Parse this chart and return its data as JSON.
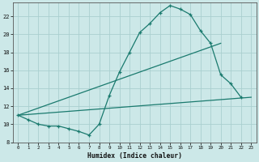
{
  "title": "",
  "xlabel": "Humidex (Indice chaleur)",
  "line_color": "#1a7a6e",
  "bg_color": "#cce8e8",
  "grid_color": "#aacfcf",
  "xlim": [
    -0.5,
    23.5
  ],
  "ylim": [
    8,
    23.5
  ],
  "yticks": [
    8,
    10,
    12,
    14,
    16,
    18,
    20,
    22
  ],
  "xticks": [
    0,
    1,
    2,
    3,
    4,
    5,
    6,
    7,
    8,
    9,
    10,
    11,
    12,
    13,
    14,
    15,
    16,
    17,
    18,
    19,
    20,
    21,
    22,
    23
  ],
  "series0_x": [
    0,
    1,
    2,
    3,
    4,
    5,
    6,
    7,
    8,
    9,
    10,
    11,
    12,
    13,
    14,
    15,
    16,
    17,
    18,
    19,
    20,
    21,
    22
  ],
  "series0_y": [
    11.0,
    10.5,
    10.0,
    9.8,
    9.8,
    9.5,
    9.2,
    8.8,
    10.0,
    13.2,
    15.8,
    18.0,
    20.2,
    21.2,
    22.4,
    23.2,
    22.8,
    22.2,
    20.4,
    19.0,
    15.5,
    14.5,
    13.0
  ],
  "series1_x": [
    0,
    20
  ],
  "series1_y": [
    11.0,
    19.0
  ],
  "series2_x": [
    0,
    23
  ],
  "series2_y": [
    11.0,
    13.0
  ]
}
